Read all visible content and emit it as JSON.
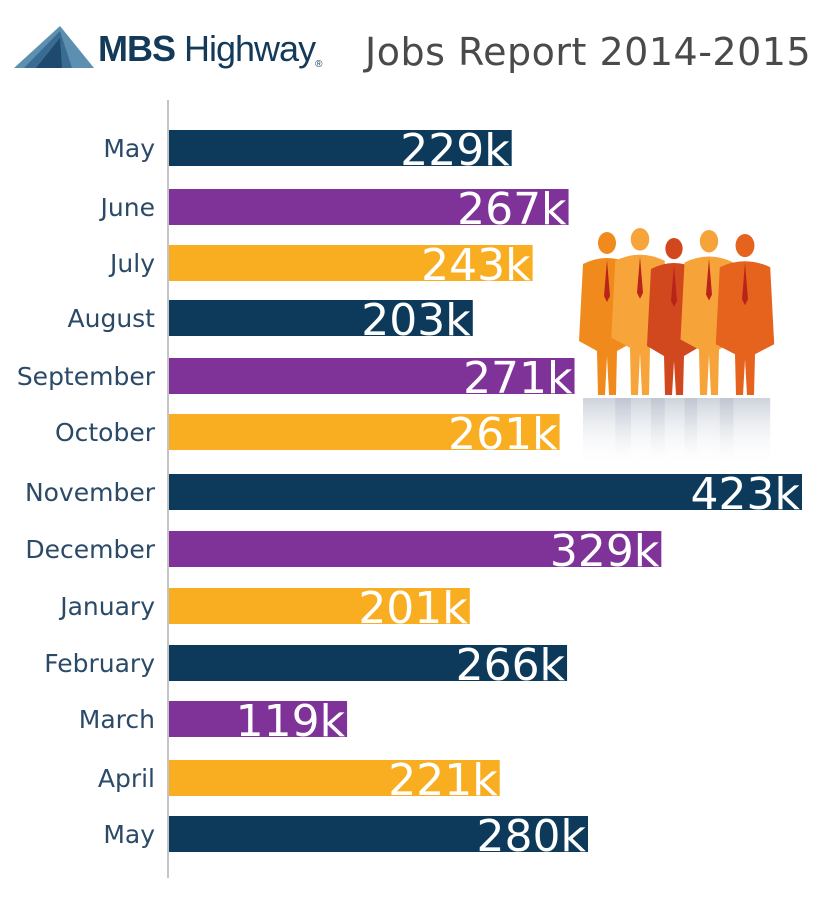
{
  "header": {
    "brand_bold": "MBS",
    "brand_light": "Highway",
    "brand_reg": "®",
    "title": "Jobs Report 2014-2015"
  },
  "colors": {
    "navy": "#0d3a5a",
    "purple": "#7f3399",
    "gold": "#f9ae22",
    "axis": "#888888",
    "label": "#2b4a68"
  },
  "chart_data": {
    "type": "bar",
    "orientation": "horizontal",
    "title": "Jobs Report 2014-2015",
    "xlabel": "",
    "ylabel": "",
    "categories": [
      "May",
      "June",
      "July",
      "August",
      "September",
      "October",
      "November",
      "December",
      "January",
      "February",
      "March",
      "April",
      "May"
    ],
    "values": [
      229,
      267,
      243,
      203,
      271,
      261,
      423,
      329,
      201,
      266,
      119,
      221,
      280
    ],
    "value_labels": [
      "229k",
      "267k",
      "243k",
      "203k",
      "271k",
      "261k",
      "423k",
      "329k",
      "201k",
      "266k",
      "119k",
      "221k",
      "280k"
    ],
    "bar_colors": [
      "navy",
      "purple",
      "gold",
      "navy",
      "purple",
      "gold",
      "navy",
      "purple",
      "gold",
      "navy",
      "purple",
      "gold",
      "navy"
    ],
    "xlim": [
      0,
      423
    ],
    "grid": false,
    "legend": "none"
  },
  "illustration": {
    "icon": "business-people-silhouettes-icon",
    "figure_colors": [
      "#f08a1c",
      "#f7a43a",
      "#d2481e",
      "#f6a33a",
      "#e5631d"
    ]
  }
}
